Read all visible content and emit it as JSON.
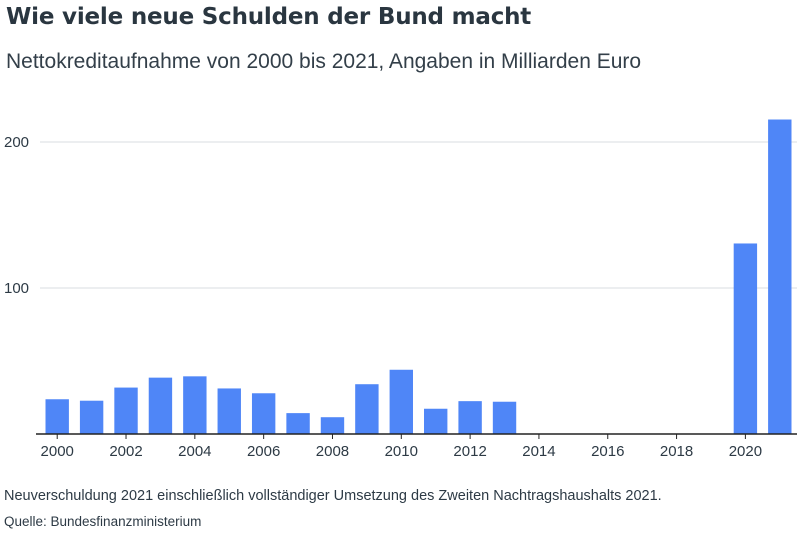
{
  "title": "Wie viele neue Schulden der Bund macht",
  "subtitle": "Nettokreditaufnahme von 2000 bis 2021, Angaben in Milliarden Euro",
  "note": "Neuverschuldung 2021 einschließlich vollständiger Umsetzung des Zweiten Nachtragshaushalts 2021.",
  "source": "Quelle: Bundesfinanzministerium",
  "colors": {
    "bar": "#4f86f7",
    "grid": "#d9dde1",
    "axis": "#222222",
    "text": "#2d3a45"
  },
  "chart_data": {
    "type": "bar",
    "categories": [
      "2000",
      "2001",
      "2002",
      "2003",
      "2004",
      "2005",
      "2006",
      "2007",
      "2008",
      "2009",
      "2010",
      "2011",
      "2012",
      "2013",
      "2014",
      "2015",
      "2016",
      "2017",
      "2018",
      "2019",
      "2020",
      "2021"
    ],
    "values": [
      23.8,
      22.8,
      31.8,
      38.6,
      39.5,
      31.2,
      27.9,
      14.3,
      11.5,
      34.1,
      44.0,
      17.3,
      22.5,
      22.1,
      0,
      0,
      0,
      0,
      0,
      0,
      130.5,
      215.4
    ],
    "x_ticks": [
      "2000",
      "2002",
      "2004",
      "2006",
      "2008",
      "2010",
      "2012",
      "2014",
      "2016",
      "2018",
      "2020"
    ],
    "y_ticks": [
      100,
      200
    ],
    "ylim": [
      0,
      220
    ],
    "grid": true
  }
}
